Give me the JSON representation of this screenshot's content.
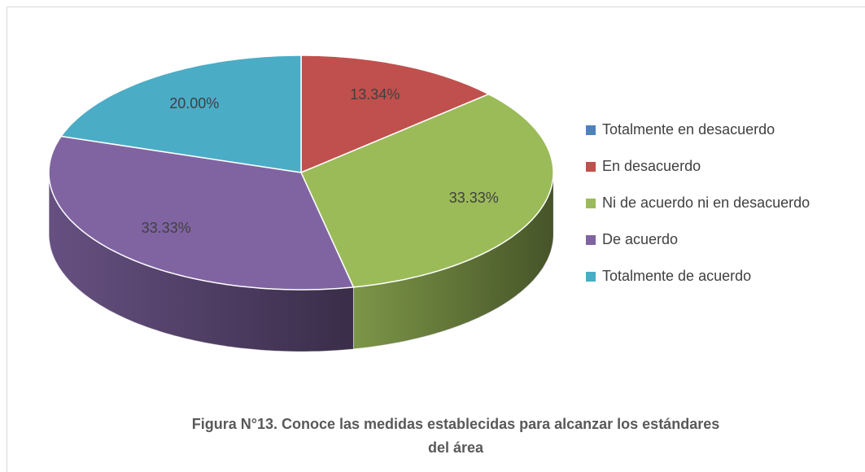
{
  "chart_data": {
    "type": "pie3d",
    "title": "Figura N°13. Conoce las medidas establecidas para alcanzar los estándares del área",
    "categories": [
      "Totalmente en desacuerdo",
      "En desacuerdo",
      "Ni de acuerdo ni en desacuerdo",
      "De acuerdo",
      "Totalmente de acuerdo"
    ],
    "values": [
      0,
      13.34,
      33.33,
      33.33,
      20.0
    ],
    "value_labels": [
      null,
      "13.34%",
      "33.33%",
      "33.33%",
      "20.00%"
    ],
    "colors": [
      "#4f81bd",
      "#c0504d",
      "#9bbb59",
      "#8064a2",
      "#4bacc6"
    ],
    "legend": "right"
  }
}
